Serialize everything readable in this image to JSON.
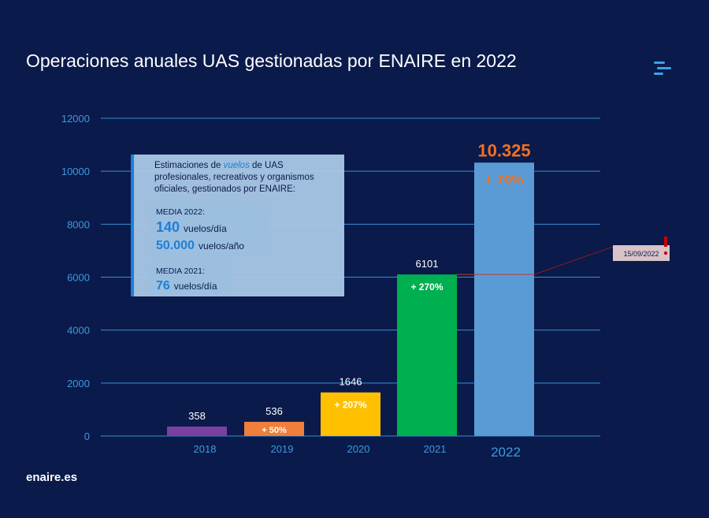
{
  "title": "Operaciones anuales UAS gestionadas por ENAIRE en 2022",
  "footer": "enaire.es",
  "logo_icon": "enaire-logo-icon",
  "colors": {
    "background": "#0a1a4a",
    "gridline": "#3a8fd6",
    "axis_text": "#3a9be0",
    "callout": "#a9c8e6",
    "accent_blue": "#1e7fd6",
    "orange": "#f37021"
  },
  "annotation": {
    "estimates_intro_pre": "Estimaciones de ",
    "estimates_intro_em": "vuelos",
    "estimates_intro_post": " de UAS",
    "estimates_line2": "profesionales, recreativos y organismos",
    "estimates_line3": "oficiales, gestionados por ENAIRE:",
    "media_2022_label": "MEDIA 2022:",
    "media_2022_day_value": "140",
    "media_2022_day_unit": "vuelos/día",
    "media_2022_year_value": "50.000",
    "media_2022_year_unit": "vuelos/año",
    "media_2021_label": "MEDIA 2021:",
    "media_2021_day_value": "76",
    "media_2021_day_unit": "vuelos/día"
  },
  "date_marker": "15/09/2022",
  "chart_data": {
    "type": "bar",
    "title": "Operaciones anuales UAS gestionadas por ENAIRE en 2022",
    "categories": [
      "2018",
      "2019",
      "2020",
      "2021",
      "2022"
    ],
    "values": [
      358,
      536,
      1646,
      6101,
      10325
    ],
    "value_labels": [
      "358",
      "536",
      "1646",
      "6101",
      "10.325"
    ],
    "growth_labels": [
      "",
      "+ 50%",
      "+ 207%",
      "+ 270%",
      "+ 70%"
    ],
    "bar_colors": [
      "#7b3fa0",
      "#f07f3c",
      "#ffc000",
      "#00b050",
      "#5b9bd5"
    ],
    "ylim": [
      0,
      12000
    ],
    "yticks": [
      0,
      2000,
      4000,
      6000,
      8000,
      10000,
      12000
    ],
    "grid": true,
    "reference_line_value": 6101
  }
}
